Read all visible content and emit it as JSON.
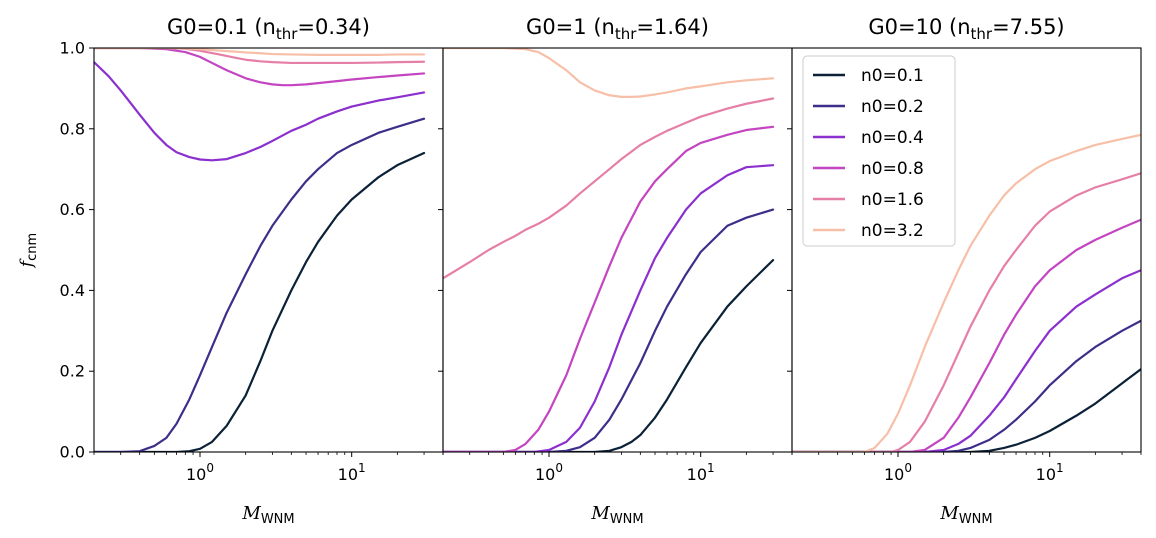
{
  "chart_data": {
    "type": "line",
    "ylabel": "f_cnm",
    "xlabel": "M_WNM",
    "ylim": [
      0,
      1.0
    ],
    "xlim": [
      0.2,
      40
    ],
    "xscale": "log",
    "yticks": [
      "0.0",
      "0.2",
      "0.4",
      "0.6",
      "0.8",
      "1.0"
    ],
    "xticks": [
      {
        "base": "10",
        "exp": "0"
      },
      {
        "base": "10",
        "exp": "1"
      }
    ],
    "legend": {
      "placement": "upper-left of third panel",
      "entries": [
        "n0=0.1",
        "n0=0.2",
        "n0=0.4",
        "n0=0.8",
        "n0=1.6",
        "n0=3.2"
      ]
    },
    "series_colors": {
      "n0=0.1": "#0b2137",
      "n0=0.2": "#3b2f8a",
      "n0=0.4": "#8b2fcf",
      "n0=0.8": "#c445c1",
      "n0=1.6": "#e57fa7",
      "n0=3.2": "#f7bfa7"
    },
    "panels": [
      {
        "title_main": "G0=0.1 (n",
        "title_sub": "thr",
        "title_end": "=0.34)",
        "series": [
          {
            "name": "n0=0.1",
            "x": [
              0.2,
              0.5,
              0.7,
              0.85,
              1.0,
              1.2,
              1.5,
              2,
              2.5,
              3,
              4,
              5,
              6,
              8,
              10,
              15,
              20,
              30
            ],
            "y": [
              0.0,
              0.0,
              0.0,
              0.002,
              0.008,
              0.025,
              0.065,
              0.14,
              0.225,
              0.3,
              0.4,
              0.47,
              0.52,
              0.585,
              0.625,
              0.68,
              0.71,
              0.74
            ]
          },
          {
            "name": "n0=0.2",
            "x": [
              0.2,
              0.3,
              0.4,
              0.5,
              0.6,
              0.7,
              0.85,
              1.0,
              1.2,
              1.5,
              2,
              2.5,
              3,
              4,
              5,
              6,
              8,
              10,
              15,
              20,
              30
            ],
            "y": [
              0.0,
              0.0,
              0.002,
              0.015,
              0.035,
              0.07,
              0.13,
              0.19,
              0.26,
              0.345,
              0.44,
              0.51,
              0.56,
              0.625,
              0.67,
              0.7,
              0.74,
              0.76,
              0.79,
              0.805,
              0.825
            ]
          },
          {
            "name": "n0=0.4",
            "x": [
              0.2,
              0.25,
              0.3,
              0.4,
              0.5,
              0.6,
              0.7,
              0.85,
              1.0,
              1.2,
              1.5,
              2,
              2.5,
              3,
              4,
              5,
              6,
              8,
              10,
              15,
              20,
              30
            ],
            "y": [
              0.965,
              0.93,
              0.895,
              0.835,
              0.79,
              0.76,
              0.742,
              0.73,
              0.724,
              0.722,
              0.725,
              0.74,
              0.755,
              0.77,
              0.795,
              0.81,
              0.825,
              0.843,
              0.855,
              0.87,
              0.878,
              0.89
            ]
          },
          {
            "name": "n0=0.8",
            "x": [
              0.2,
              0.4,
              0.6,
              0.8,
              1.0,
              1.2,
              1.5,
              2,
              2.5,
              3,
              3.5,
              4,
              5,
              6,
              8,
              10,
              15,
              20,
              30
            ],
            "y": [
              1.0,
              1.0,
              0.997,
              0.99,
              0.978,
              0.963,
              0.945,
              0.925,
              0.915,
              0.91,
              0.908,
              0.908,
              0.91,
              0.913,
              0.918,
              0.922,
              0.928,
              0.932,
              0.937
            ]
          },
          {
            "name": "n0=1.6",
            "x": [
              0.2,
              0.6,
              0.8,
              1.0,
              1.3,
              1.7,
              2,
              2.5,
              3,
              4,
              5,
              6,
              8,
              10,
              15,
              20,
              30
            ],
            "y": [
              1.0,
              1.0,
              0.998,
              0.993,
              0.985,
              0.976,
              0.971,
              0.967,
              0.965,
              0.963,
              0.963,
              0.963,
              0.963,
              0.963,
              0.964,
              0.965,
              0.966
            ]
          },
          {
            "name": "n0=3.2",
            "x": [
              0.2,
              0.6,
              0.8,
              1.0,
              1.3,
              1.7,
              2,
              2.5,
              3,
              4,
              6,
              8,
              10,
              15,
              20,
              30
            ],
            "y": [
              1.0,
              1.0,
              0.999,
              0.997,
              0.994,
              0.991,
              0.989,
              0.987,
              0.985,
              0.984,
              0.983,
              0.983,
              0.983,
              0.983,
              0.984,
              0.984
            ]
          }
        ]
      },
      {
        "title_main": "G0=1 (n",
        "title_sub": "thr",
        "title_end": "=1.64)",
        "series": [
          {
            "name": "n0=0.1",
            "x": [
              0.2,
              1.5,
              2,
              2.5,
              3,
              3.5,
              4,
              5,
              6,
              8,
              10,
              15,
              20,
              30
            ],
            "y": [
              0.0,
              0.0,
              0.0,
              0.003,
              0.012,
              0.025,
              0.042,
              0.085,
              0.13,
              0.21,
              0.27,
              0.36,
              0.41,
              0.475
            ]
          },
          {
            "name": "n0=0.2",
            "x": [
              0.2,
              1.0,
              1.3,
              1.6,
              2,
              2.5,
              3,
              4,
              5,
              6,
              8,
              10,
              15,
              20,
              30
            ],
            "y": [
              0.0,
              0.0,
              0.003,
              0.012,
              0.035,
              0.08,
              0.13,
              0.22,
              0.3,
              0.36,
              0.44,
              0.495,
              0.56,
              0.58,
              0.6
            ]
          },
          {
            "name": "n0=0.4",
            "x": [
              0.2,
              0.8,
              1.0,
              1.3,
              1.6,
              2,
              2.5,
              3,
              4,
              5,
              6,
              8,
              10,
              15,
              20,
              30
            ],
            "y": [
              0.0,
              0.0,
              0.005,
              0.025,
              0.06,
              0.125,
              0.21,
              0.29,
              0.4,
              0.48,
              0.53,
              0.6,
              0.64,
              0.685,
              0.705,
              0.71
            ]
          },
          {
            "name": "n0=0.8",
            "x": [
              0.2,
              0.5,
              0.6,
              0.7,
              0.85,
              1.0,
              1.3,
              1.6,
              2,
              2.5,
              3,
              4,
              5,
              6,
              8,
              10,
              15,
              20,
              30
            ],
            "y": [
              0.0,
              0.0,
              0.005,
              0.02,
              0.055,
              0.1,
              0.19,
              0.28,
              0.37,
              0.46,
              0.53,
              0.62,
              0.67,
              0.7,
              0.745,
              0.765,
              0.785,
              0.797,
              0.805
            ]
          },
          {
            "name": "n0=1.6",
            "x": [
              0.2,
              0.3,
              0.4,
              0.5,
              0.6,
              0.7,
              0.85,
              1.0,
              1.3,
              1.6,
              2,
              2.5,
              3,
              4,
              5,
              6,
              8,
              10,
              15,
              20,
              30
            ],
            "y": [
              0.43,
              0.47,
              0.5,
              0.52,
              0.535,
              0.55,
              0.565,
              0.58,
              0.61,
              0.64,
              0.67,
              0.7,
              0.725,
              0.76,
              0.78,
              0.795,
              0.815,
              0.83,
              0.85,
              0.862,
              0.875
            ]
          },
          {
            "name": "n0=3.2",
            "x": [
              0.2,
              0.5,
              0.7,
              0.85,
              1.0,
              1.3,
              1.6,
              2,
              2.5,
              3,
              3.5,
              4,
              5,
              6,
              8,
              10,
              15,
              20,
              30
            ],
            "y": [
              1.0,
              1.0,
              0.997,
              0.99,
              0.975,
              0.945,
              0.915,
              0.895,
              0.883,
              0.879,
              0.879,
              0.88,
              0.885,
              0.89,
              0.9,
              0.905,
              0.915,
              0.92,
              0.925
            ]
          }
        ]
      },
      {
        "title_main": "G0=10 (n",
        "title_sub": "thr",
        "title_end": "=7.55)",
        "series": [
          {
            "name": "n0=0.1",
            "x": [
              0.2,
              3,
              4,
              5,
              6,
              8,
              10,
              15,
              20,
              30,
              40
            ],
            "y": [
              0.0,
              0.0,
              0.003,
              0.01,
              0.018,
              0.035,
              0.052,
              0.09,
              0.12,
              0.17,
              0.205
            ]
          },
          {
            "name": "n0=0.2",
            "x": [
              0.2,
              2,
              2.5,
              3,
              4,
              5,
              6,
              8,
              10,
              15,
              20,
              30,
              40
            ],
            "y": [
              0.0,
              0.0,
              0.003,
              0.01,
              0.03,
              0.055,
              0.08,
              0.125,
              0.165,
              0.225,
              0.26,
              0.3,
              0.325
            ]
          },
          {
            "name": "n0=0.4",
            "x": [
              0.2,
              1.5,
              2,
              2.5,
              3,
              4,
              5,
              6,
              8,
              10,
              15,
              20,
              30,
              40
            ],
            "y": [
              0.0,
              0.0,
              0.005,
              0.02,
              0.04,
              0.09,
              0.135,
              0.18,
              0.25,
              0.3,
              0.36,
              0.39,
              0.43,
              0.45
            ]
          },
          {
            "name": "n0=0.8",
            "x": [
              0.2,
              1.2,
              1.5,
              2,
              2.5,
              3,
              4,
              5,
              6,
              8,
              10,
              15,
              20,
              30,
              40
            ],
            "y": [
              0.0,
              0.0,
              0.005,
              0.035,
              0.085,
              0.135,
              0.22,
              0.29,
              0.34,
              0.41,
              0.45,
              0.5,
              0.525,
              0.555,
              0.575
            ]
          },
          {
            "name": "n0=1.6",
            "x": [
              0.2,
              0.9,
              1.0,
              1.2,
              1.5,
              2,
              2.5,
              3,
              4,
              5,
              6,
              8,
              10,
              15,
              20,
              30,
              40
            ],
            "y": [
              0.0,
              0.0,
              0.005,
              0.025,
              0.075,
              0.165,
              0.245,
              0.31,
              0.4,
              0.46,
              0.5,
              0.56,
              0.595,
              0.635,
              0.655,
              0.675,
              0.69
            ]
          },
          {
            "name": "n0=3.2",
            "x": [
              0.2,
              0.6,
              0.7,
              0.85,
              1.0,
              1.2,
              1.5,
              2,
              2.5,
              3,
              4,
              5,
              6,
              8,
              10,
              15,
              20,
              30,
              40
            ],
            "y": [
              0.0,
              0.0,
              0.01,
              0.045,
              0.095,
              0.165,
              0.26,
              0.37,
              0.45,
              0.51,
              0.585,
              0.635,
              0.665,
              0.7,
              0.72,
              0.745,
              0.76,
              0.775,
              0.785
            ]
          }
        ]
      }
    ]
  }
}
